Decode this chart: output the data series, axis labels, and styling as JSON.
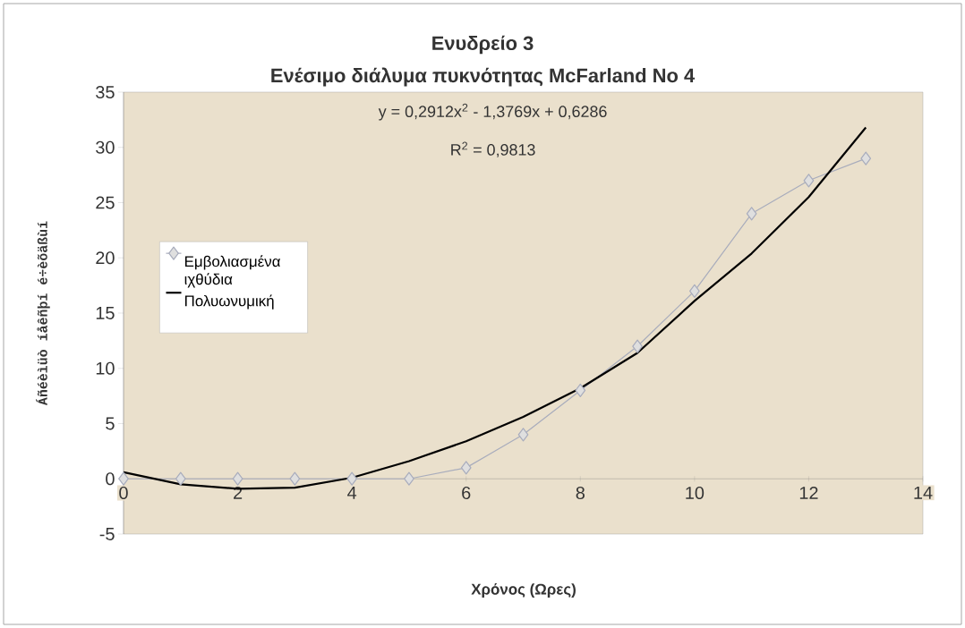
{
  "chart_data": {
    "type": "line",
    "title": "Ενυδρείο 3",
    "subtitle": "Ενέσιμο διάλυμα πυκνότητας McFarland No 4",
    "xlabel": "Χρόνος (Ωρες)",
    "ylabel": "Áñéèìüò íåêñþí é÷èõäßùí",
    "annotations": [
      "y = 0,2912x$^{2}$ - 1,3769x + 0,6286",
      "R$^{2}$ = 0,9813"
    ],
    "x": [
      0,
      1,
      2,
      3,
      4,
      5,
      6,
      7,
      8,
      9,
      10,
      11,
      12,
      13
    ],
    "series": [
      {
        "name": "Εμβολιασμένα ιχθύδια",
        "color": "#a8acbc",
        "values": [
          0,
          0,
          0,
          0,
          0,
          0,
          1,
          4,
          8,
          12,
          17,
          24,
          27,
          29
        ]
      },
      {
        "name": "Πολυωνυμική",
        "type": "line",
        "color": "#000000",
        "marker": "none",
        "x": [
          0,
          1,
          2,
          3,
          4,
          5,
          6,
          7,
          8,
          9,
          10,
          11,
          12,
          13
        ],
        "values": [
          0.6,
          -0.5,
          -0.9,
          -0.8,
          0.1,
          1.6,
          3.4,
          5.6,
          8.2,
          11.4,
          16.1,
          20.4,
          25.5,
          31.8
        ]
      }
    ],
    "marker": "diamond",
    "legend": "left",
    "xlim": [
      0,
      14
    ],
    "ylim": [
      -5,
      35
    ],
    "xticks": [
      0,
      2,
      4,
      6,
      8,
      10,
      12,
      14
    ],
    "yticks": [
      -5,
      0,
      5,
      10,
      15,
      20,
      25,
      30,
      35
    ]
  }
}
